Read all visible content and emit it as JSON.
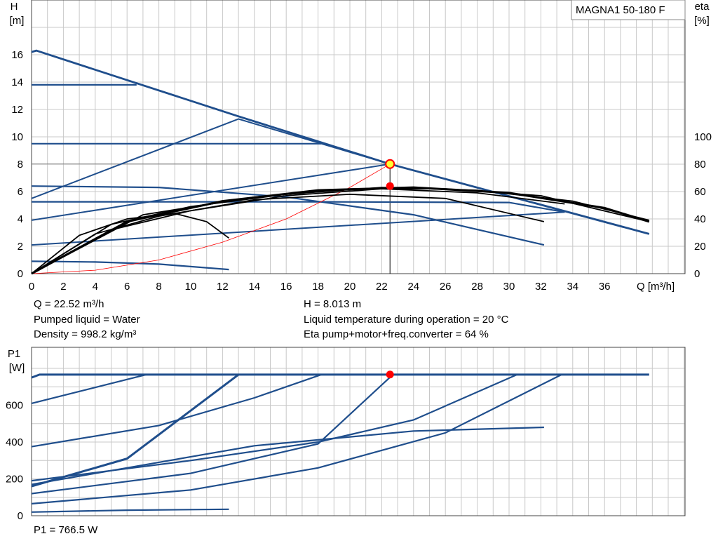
{
  "title": "MAGNA1 50-180 F",
  "colors": {
    "curve_blue": "#1f4e8c",
    "curve_black": "#000000",
    "grid": "#c8c8c8",
    "marker_red": "#ff0000",
    "marker_yellow": "#ffff33",
    "system_curve": "#ff0000"
  },
  "info": {
    "q": "Q = 22.52 m³/h",
    "liquid": "Pumped liquid = Water",
    "density": "Density = 998.2 kg/m³",
    "h": "H = 8.013 m",
    "temp": "Liquid temperature during operation = 20 °C",
    "eta": "Eta pump+motor+freq.converter = 64 %",
    "p1": "P1 = 766.5 W"
  },
  "chart_data": [
    {
      "type": "line",
      "name": "head-eta",
      "xlabel": "Q [m³/h]",
      "ylabel_top": "H",
      "ylabel_unit": "[m]",
      "y2label_top": "eta",
      "y2label_unit": "[%]",
      "xlim": [
        0,
        41
      ],
      "ylim": [
        0,
        18
      ],
      "y2lim": [
        0,
        180
      ],
      "x_ticks": [
        "0",
        "2",
        "4",
        "6",
        "8",
        "10",
        "12",
        "14",
        "16",
        "18",
        "20",
        "22",
        "24",
        "26",
        "28",
        "30",
        "32",
        "34",
        "36"
      ],
      "y_ticks": [
        "0",
        "2",
        "4",
        "6",
        "8",
        "10",
        "12",
        "14",
        "16"
      ],
      "y2_ticks": [
        "0",
        "20",
        "40",
        "60",
        "80",
        "100"
      ],
      "grid": true,
      "head_curves": [
        [
          [
            0,
            16.2
          ],
          [
            0.3,
            16.3
          ],
          [
            13,
            11.5
          ],
          [
            22.52,
            8.01
          ],
          [
            38.8,
            2.9
          ]
        ],
        [
          [
            0,
            13.8
          ],
          [
            6.6,
            13.8
          ]
        ],
        [
          [
            0,
            9.5
          ],
          [
            18.2,
            9.5
          ]
        ],
        [
          [
            0,
            6.4
          ],
          [
            8,
            6.3
          ],
          [
            16,
            5.6
          ],
          [
            24,
            4.3
          ],
          [
            32.2,
            2.1
          ]
        ],
        [
          [
            0,
            5.25
          ],
          [
            10,
            5.25
          ],
          [
            18,
            5.25
          ],
          [
            30,
            5.2
          ],
          [
            33.5,
            4.5
          ]
        ],
        [
          [
            0,
            0.9
          ],
          [
            4,
            0.85
          ],
          [
            8,
            0.7
          ],
          [
            12.4,
            0.3
          ]
        ]
      ],
      "limit_lines": [
        [
          [
            0,
            5.5
          ],
          [
            13,
            11.3
          ],
          [
            22.52,
            8.01
          ]
        ],
        [
          [
            0,
            3.9
          ],
          [
            22.52,
            8.01
          ]
        ],
        [
          [
            0,
            2.1
          ],
          [
            33.5,
            4.5
          ]
        ]
      ],
      "system_curve": [
        [
          0,
          0
        ],
        [
          4,
          0.25
        ],
        [
          8,
          1.0
        ],
        [
          12,
          2.3
        ],
        [
          16,
          4.0
        ],
        [
          20,
          6.3
        ],
        [
          22.52,
          8.01
        ]
      ],
      "eta_curves": [
        [
          [
            0,
            0
          ],
          [
            3,
            28
          ],
          [
            6,
            40
          ],
          [
            9,
            44
          ],
          [
            11,
            38
          ],
          [
            12.4,
            26
          ]
        ],
        [
          [
            0,
            0
          ],
          [
            4,
            29
          ],
          [
            8,
            42
          ],
          [
            14,
            54
          ],
          [
            20,
            58
          ],
          [
            26,
            55
          ],
          [
            32.2,
            38
          ]
        ],
        [
          [
            0,
            0
          ],
          [
            5,
            32
          ],
          [
            10,
            46
          ],
          [
            16,
            57
          ],
          [
            22,
            62
          ],
          [
            28,
            59
          ],
          [
            33.5,
            51
          ]
        ],
        [
          [
            0,
            0
          ],
          [
            6,
            38
          ],
          [
            12,
            53
          ],
          [
            18,
            61
          ],
          [
            24,
            63
          ],
          [
            30,
            59
          ],
          [
            36,
            48
          ],
          [
            38.8,
            38
          ]
        ],
        [
          [
            0,
            0
          ],
          [
            5,
            36
          ],
          [
            10,
            49
          ],
          [
            16,
            58
          ],
          [
            22,
            63
          ],
          [
            28,
            61
          ],
          [
            34,
            53
          ],
          [
            38.8,
            39
          ]
        ],
        [
          [
            0,
            0
          ],
          [
            7,
            43
          ],
          [
            14,
            56
          ],
          [
            20,
            62
          ],
          [
            26,
            62
          ],
          [
            32,
            57
          ],
          [
            38.8,
            38
          ]
        ]
      ],
      "duty_point": {
        "q": 22.52,
        "h": 8.013,
        "eta": 64
      }
    },
    {
      "type": "line",
      "name": "power",
      "ylabel_top": "P1",
      "ylabel_unit": "[W]",
      "xlim": [
        0,
        41
      ],
      "ylim": [
        0,
        800
      ],
      "y_ticks": [
        "0",
        "200",
        "400",
        "600"
      ],
      "grid": true,
      "power_curves": [
        [
          [
            0,
            750
          ],
          [
            0.5,
            766
          ],
          [
            38.8,
            766
          ]
        ],
        [
          [
            0,
            610
          ],
          [
            7.2,
            766
          ]
        ],
        [
          [
            0,
            375
          ],
          [
            8,
            490
          ],
          [
            14,
            640
          ],
          [
            18.2,
            766
          ]
        ],
        [
          [
            0,
            160
          ],
          [
            6,
            310
          ],
          [
            13,
            766
          ]
        ],
        [
          [
            0,
            190
          ],
          [
            10,
            300
          ],
          [
            18,
            400
          ],
          [
            24,
            520
          ],
          [
            30.5,
            766
          ]
        ],
        [
          [
            0,
            120
          ],
          [
            10,
            230
          ],
          [
            18,
            390
          ],
          [
            22.7,
            766
          ]
        ],
        [
          [
            0,
            65
          ],
          [
            10,
            140
          ],
          [
            18,
            260
          ],
          [
            26,
            450
          ],
          [
            33.3,
            766
          ]
        ],
        [
          [
            0,
            170
          ],
          [
            14,
            380
          ],
          [
            24,
            460
          ],
          [
            32.2,
            480
          ]
        ],
        [
          [
            0,
            20
          ],
          [
            6,
            30
          ],
          [
            12.4,
            35
          ]
        ]
      ],
      "duty_point": {
        "q": 22.52,
        "p1": 766.5
      }
    }
  ]
}
